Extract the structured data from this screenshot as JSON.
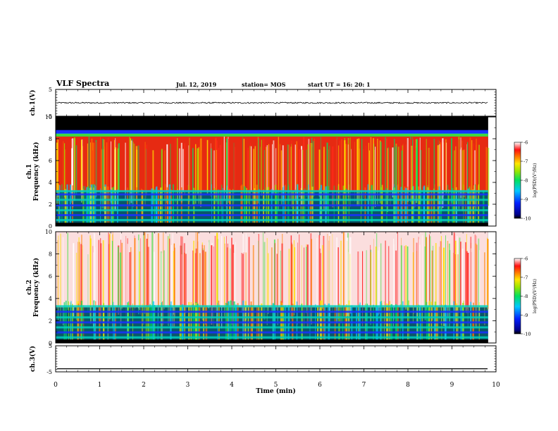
{
  "header": {
    "title": "VLF Spectra",
    "date": "Jul. 12, 2019",
    "station": "station= MOS",
    "start": "start UT =  16: 20: 1"
  },
  "chart_data": [
    {
      "type": "line",
      "panel": "ch1_waveform",
      "ylabel": "ch.1(V)",
      "ylim": [
        -5,
        5
      ],
      "yticks": [
        "5",
        "-5"
      ],
      "x": [
        0,
        10
      ],
      "series": [
        {
          "values": [
            0,
            0
          ]
        }
      ]
    },
    {
      "type": "heatmap",
      "panel": "ch1_spectrogram",
      "ylabel": "ch.1\nFrequency (kHz)",
      "ylim": [
        0,
        10
      ],
      "yticks": [
        "0",
        "2",
        "4",
        "6",
        "8",
        "10"
      ],
      "colorbar": {
        "label": "log(PSD)(V²/Hz)",
        "range": [
          -10,
          -6
        ],
        "ticks": [
          "-6",
          "-7",
          "-8",
          "-9",
          "-10"
        ]
      },
      "cutoff_khz": 8.8,
      "broadband_upper_khz": 8.2,
      "noise_lines_khz": [
        0.55,
        1.0,
        1.45,
        1.9,
        2.4,
        2.9,
        3.2
      ]
    },
    {
      "type": "heatmap",
      "panel": "ch2_spectrogram",
      "ylabel": "ch.2\nFrequency (kHz)",
      "ylim": [
        0,
        10
      ],
      "yticks": [
        "0",
        "2",
        "4",
        "6",
        "8",
        "10"
      ],
      "colorbar": {
        "label": "log(PSD)(V²/Hz)",
        "range": [
          -10,
          -6
        ],
        "ticks": [
          "-6",
          "-7",
          "-8",
          "-9",
          "-10"
        ]
      },
      "noise_lines_khz": [
        0.5,
        0.95,
        1.4,
        1.85,
        2.3,
        2.8,
        3.3
      ]
    },
    {
      "type": "line",
      "panel": "ch3_waveform",
      "ylabel": "ch.3(V)",
      "ylim": [
        -5,
        5
      ],
      "yticks": [
        "5",
        "-5"
      ],
      "x": [
        0,
        10
      ],
      "series": [
        {
          "values": [
            -3.8,
            -3.8
          ]
        }
      ]
    }
  ],
  "xaxis": {
    "label": "Time (min)",
    "xlim": [
      0,
      10
    ],
    "ticks": [
      "0",
      "1",
      "2",
      "3",
      "4",
      "5",
      "6",
      "7",
      "8",
      "9",
      "10"
    ],
    "data_end": 9.82
  },
  "colors": {
    "background": "#ffffff",
    "axis": "#000000"
  }
}
